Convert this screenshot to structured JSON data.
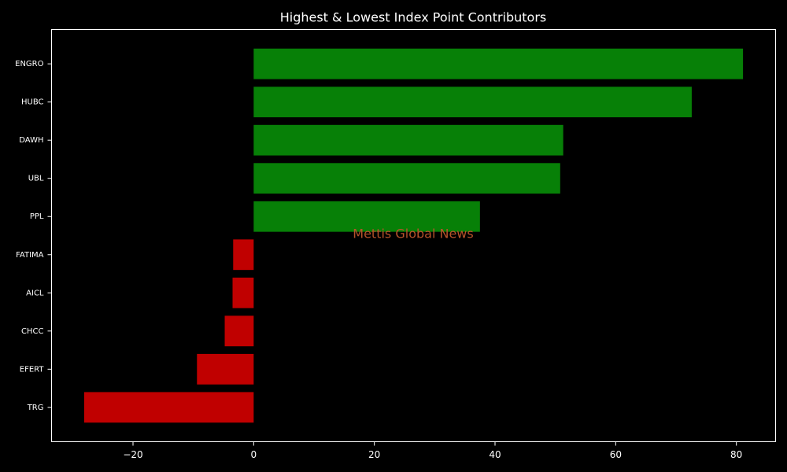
{
  "chart_data": {
    "type": "barh",
    "title": "Highest & Lowest Index Point Contributors",
    "categories": [
      "ENGRO",
      "HUBC",
      "DAWH",
      "UBL",
      "PPL",
      "FATIMA",
      "AICL",
      "CHCC",
      "EFERT",
      "TRG"
    ],
    "values": [
      81.1,
      72.6,
      51.3,
      50.8,
      37.5,
      -3.4,
      -3.5,
      -4.8,
      -9.4,
      -28.1
    ],
    "colors": [
      "#078007",
      "#078007",
      "#078007",
      "#078007",
      "#078007",
      "#c00000",
      "#c00000",
      "#c00000",
      "#c00000",
      "#c00000"
    ],
    "xlim": [
      -33.5,
      86.5
    ],
    "xticks": [
      {
        "value": -20,
        "label": "−20"
      },
      0,
      20,
      40,
      60,
      80
    ],
    "annotation": "Mettis Global News"
  }
}
